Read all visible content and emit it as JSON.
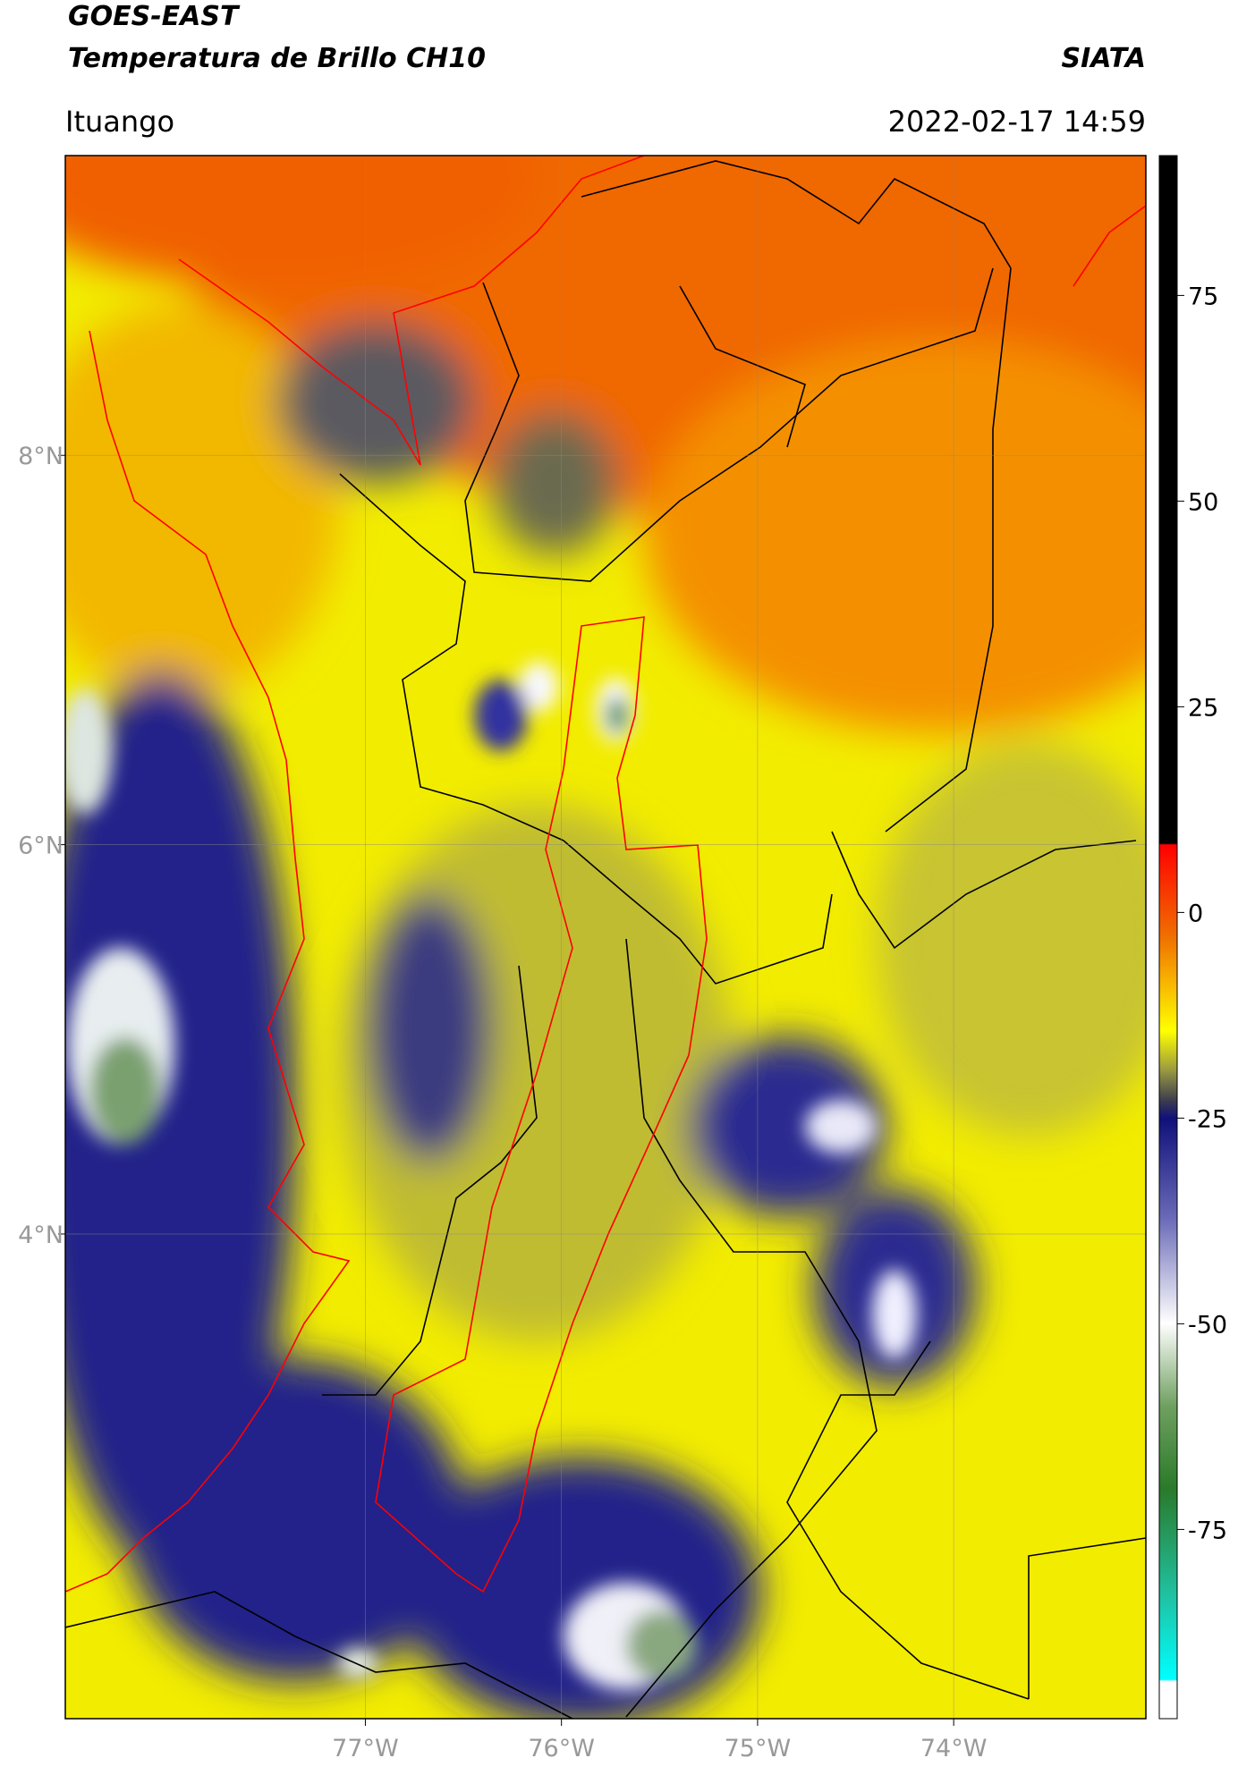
{
  "header": {
    "title": "GOES-EAST",
    "subtitle": "Temperatura de Brillo CH10",
    "source": "SIATA",
    "location": "Ituango",
    "timestamp": "2022-02-17 14:59"
  },
  "map": {
    "xlim": [
      -78.53,
      -73.02
    ],
    "ylim": [
      1.51,
      9.54
    ],
    "xticks": [
      {
        "value": -77,
        "label": "77°W"
      },
      {
        "value": -76,
        "label": "76°W"
      },
      {
        "value": -75,
        "label": "75°W"
      },
      {
        "value": -74,
        "label": "74°W"
      }
    ],
    "yticks": [
      {
        "value": 8,
        "label": "8°N"
      },
      {
        "value": 6,
        "label": "6°N"
      },
      {
        "value": 4,
        "label": "4°N"
      }
    ],
    "grid": true
  },
  "colorbar": {
    "clim": [
      -98,
      92
    ],
    "ticks": [
      75,
      50,
      25,
      0,
      -25,
      -50,
      -75
    ]
  }
}
